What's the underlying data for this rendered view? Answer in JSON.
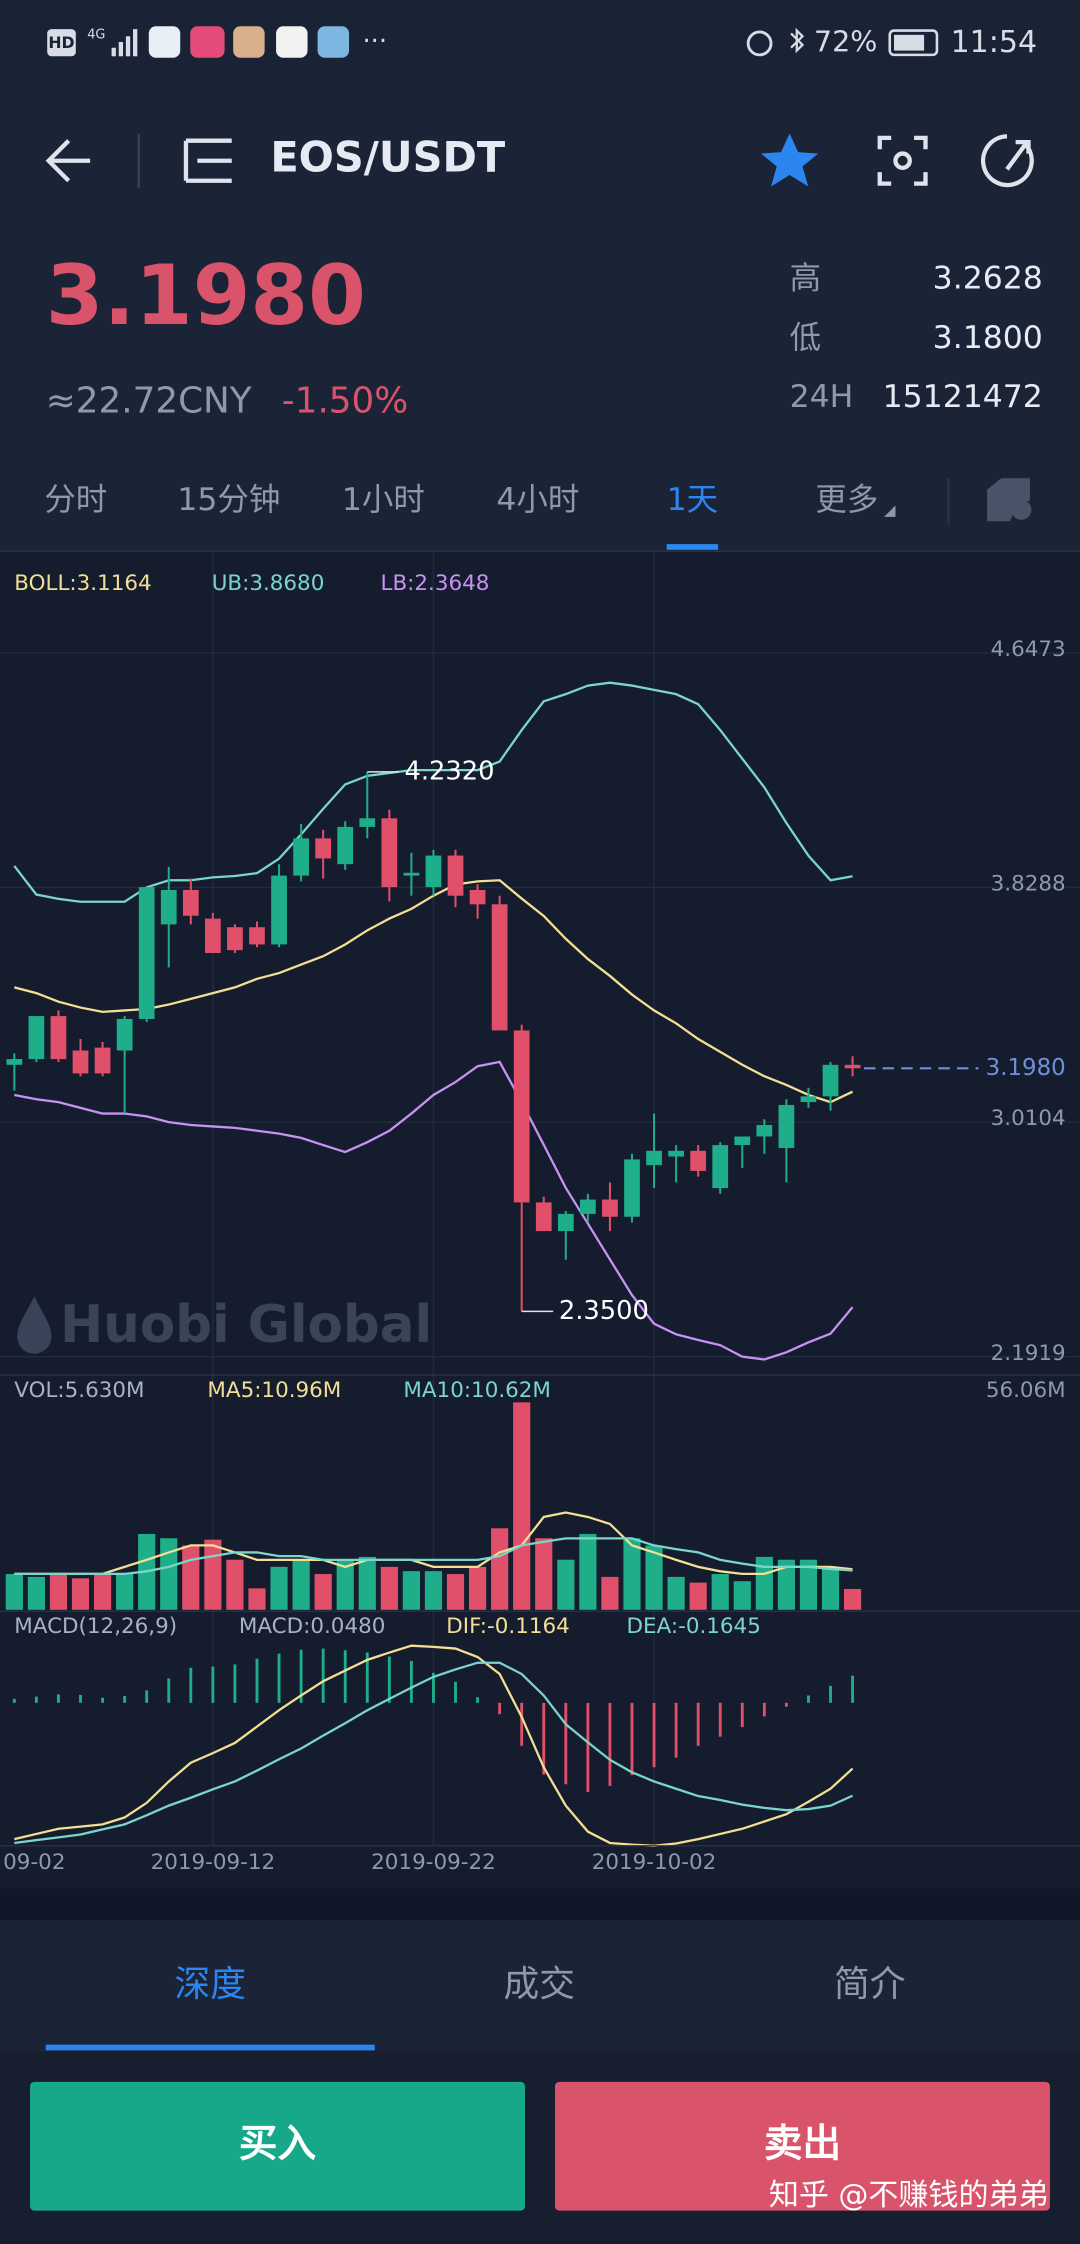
{
  "status_bar": {
    "hd": "HD",
    "network": "4G",
    "more": "···",
    "battery": "72%",
    "time": "11:54"
  },
  "header": {
    "title": "EOS/USDT"
  },
  "ticker": {
    "price": "3.1980",
    "cny": "≈22.72CNY",
    "change": "-1.50%",
    "stats": [
      {
        "label": "高",
        "value": "3.2628"
      },
      {
        "label": "低",
        "value": "3.1800"
      },
      {
        "label": "24H",
        "value": "15121472"
      }
    ]
  },
  "period_tabs": {
    "items": [
      "分时",
      "15分钟",
      "1小时",
      "4小时",
      "1天",
      "更多"
    ],
    "active": 4
  },
  "watermark": "Huobi Global",
  "chart_data": [
    {
      "type": "candlestick",
      "xlim": [
        -0.65,
        48.31
      ],
      "ylim": [
        2.1323,
        5.0016
      ],
      "yticks": [
        4.6473,
        3.8288,
        3.0104,
        2.1919
      ],
      "grid": true,
      "up_color": "#1fae8a",
      "down_color": "#e0506a",
      "open": [
        3.21,
        3.23,
        3.38,
        3.26,
        3.27,
        3.26,
        3.37,
        3.7,
        3.82,
        3.72,
        3.69,
        3.69,
        3.63,
        3.87,
        4.0,
        3.91,
        4.04,
        4.07,
        3.87,
        3.83,
        3.94,
        3.82,
        3.77,
        3.33,
        2.73,
        2.63,
        2.69,
        2.74,
        2.68,
        2.86,
        2.89,
        2.91,
        2.78,
        2.93,
        2.96,
        2.92,
        3.08,
        3.1,
        3.21
      ],
      "high": [
        3.25,
        3.38,
        3.4,
        3.3,
        3.29,
        3.38,
        3.83,
        3.9,
        3.86,
        3.74,
        3.7,
        3.71,
        3.91,
        4.05,
        4.03,
        4.06,
        4.232,
        4.1,
        3.95,
        3.96,
        3.96,
        3.84,
        3.8,
        3.35,
        2.75,
        2.7,
        2.76,
        2.8,
        2.9,
        3.04,
        2.93,
        2.93,
        2.94,
        2.96,
        3.02,
        3.09,
        3.13,
        3.22,
        3.24
      ],
      "low": [
        3.12,
        3.22,
        3.22,
        3.17,
        3.17,
        3.04,
        3.36,
        3.55,
        3.7,
        3.6,
        3.6,
        3.62,
        3.62,
        3.85,
        3.86,
        3.89,
        4.0,
        3.78,
        3.8,
        3.8,
        3.76,
        3.72,
        3.33,
        2.35,
        2.63,
        2.53,
        2.66,
        2.63,
        2.66,
        2.78,
        2.8,
        2.82,
        2.76,
        2.85,
        2.9,
        2.8,
        3.06,
        3.05,
        3.17
      ],
      "close": [
        3.23,
        3.38,
        3.23,
        3.18,
        3.18,
        3.37,
        3.83,
        3.82,
        3.73,
        3.6,
        3.61,
        3.63,
        3.87,
        4.0,
        3.93,
        4.04,
        4.07,
        3.83,
        3.88,
        3.94,
        3.8,
        3.77,
        3.33,
        2.73,
        2.63,
        2.69,
        2.74,
        2.68,
        2.88,
        2.91,
        2.91,
        2.84,
        2.93,
        2.96,
        3.0,
        3.07,
        3.1,
        3.21,
        3.198
      ],
      "series": [
        {
          "name": "BOLL:3.1164",
          "color": "#f2df94",
          "values": [
            3.48,
            3.46,
            3.43,
            3.41,
            3.395,
            3.4,
            3.405,
            3.42,
            3.44,
            3.46,
            3.48,
            3.51,
            3.53,
            3.56,
            3.589,
            3.63,
            3.679,
            3.72,
            3.754,
            3.8,
            3.839,
            3.85,
            3.854,
            3.79,
            3.729,
            3.65,
            3.579,
            3.52,
            3.455,
            3.4,
            3.355,
            3.3,
            3.255,
            3.21,
            3.17,
            3.14,
            3.105,
            3.08,
            3.1164
          ]
        },
        {
          "name": "UB:3.8680",
          "color": "#7ad6c9",
          "values": [
            3.904,
            3.804,
            3.789,
            3.779,
            3.779,
            3.779,
            3.829,
            3.854,
            3.854,
            3.864,
            3.869,
            3.879,
            3.929,
            4.014,
            4.103,
            4.188,
            4.218,
            4.228,
            4.238,
            4.238,
            4.238,
            4.238,
            4.268,
            4.378,
            4.478,
            4.503,
            4.533,
            4.543,
            4.533,
            4.518,
            4.503,
            4.468,
            4.378,
            4.278,
            4.178,
            4.054,
            3.939,
            3.854,
            3.868
          ]
        },
        {
          "name": "LB:2.3648",
          "color": "#c792f2",
          "values": [
            3.105,
            3.09,
            3.08,
            3.06,
            3.04,
            3.04,
            3.03,
            3.01,
            3.0,
            2.995,
            2.99,
            2.98,
            2.97,
            2.955,
            2.93,
            2.906,
            2.94,
            2.98,
            3.04,
            3.105,
            3.15,
            3.205,
            3.22,
            3.08,
            2.931,
            2.781,
            2.656,
            2.531,
            2.407,
            2.307,
            2.27,
            2.25,
            2.232,
            2.192,
            2.182,
            2.207,
            2.242,
            2.272,
            2.3648
          ]
        }
      ],
      "annotations": [
        {
          "x": 16,
          "value": 4.232,
          "label": "4.2320"
        },
        {
          "x": 23,
          "value": 2.35,
          "label": "2.3500"
        }
      ],
      "last_price": {
        "value": 3.198,
        "label": "3.1980",
        "color": "#6f8fd6"
      }
    },
    {
      "type": "bar",
      "ylim": [
        0,
        56.06
      ],
      "yticks": [
        {
          "value": 56.06,
          "label": "56.06M"
        }
      ],
      "series": [
        {
          "name": "VOL:5.630M",
          "values": [
            9.66,
            8.89,
            9.66,
            8.5,
            9.66,
            9.66,
            20.49,
            19.33,
            17.39,
            18.94,
            13.53,
            5.8,
            11.6,
            13.53,
            9.66,
            13.53,
            14.3,
            11.6,
            10.44,
            10.44,
            9.66,
            11.6,
            22.03,
            56.06,
            19.33,
            13.53,
            20.49,
            8.89,
            19.33,
            17.39,
            8.89,
            7.34,
            9.66,
            7.73,
            14.3,
            13.53,
            13.53,
            11.6,
            5.63
          ]
        },
        {
          "name": "MA5:10.96M",
          "color": "#f2df94",
          "values": [
            9.7,
            9.7,
            9.7,
            9.7,
            9.7,
            11.6,
            13.5,
            15.5,
            17.4,
            17.4,
            15.5,
            13.5,
            13.5,
            13.5,
            13.5,
            11.6,
            13.5,
            13.5,
            13.5,
            11.6,
            11.6,
            11.6,
            15.5,
            17.4,
            25.1,
            26.3,
            25.1,
            23.2,
            17.4,
            15.5,
            13.5,
            11.6,
            10.4,
            9.7,
            9.7,
            11.6,
            11.6,
            11.6,
            10.96
          ]
        },
        {
          "name": "MA10:10.62M",
          "color": "#7ad6c9",
          "values": [
            9.7,
            9.7,
            9.7,
            9.7,
            9.7,
            9.7,
            10.4,
            11.6,
            13.5,
            14.5,
            15.5,
            15.5,
            14.5,
            14.5,
            13.5,
            13.5,
            13.5,
            13.5,
            13.5,
            13.5,
            13.5,
            13.5,
            14.5,
            17.4,
            18.4,
            19.3,
            19.3,
            19.3,
            19.3,
            17.4,
            16.4,
            15.5,
            13.5,
            12.5,
            11.6,
            11.6,
            11.6,
            11.0,
            10.62
          ]
        }
      ]
    },
    {
      "type": "macd",
      "title": "MACD(12,26,9)",
      "ylim": [
        -0.253,
        0.157
      ],
      "xticks": [
        {
          "value": -1,
          "label": "09-02"
        },
        {
          "value": 9,
          "label": "2019-09-12"
        },
        {
          "value": 19,
          "label": "2019-09-22"
        },
        {
          "value": 29,
          "label": "2019-10-02"
        }
      ],
      "series": [
        {
          "name": "MACD:0.0480",
          "values": [
            0.007,
            0.011,
            0.015,
            0.014,
            0.009,
            0.012,
            0.022,
            0.043,
            0.062,
            0.064,
            0.068,
            0.078,
            0.087,
            0.094,
            0.096,
            0.093,
            0.089,
            0.082,
            0.074,
            0.053,
            0.037,
            0.01,
            -0.02,
            -0.076,
            -0.127,
            -0.144,
            -0.158,
            -0.147,
            -0.128,
            -0.114,
            -0.097,
            -0.076,
            -0.06,
            -0.043,
            -0.024,
            -0.007,
            0.013,
            0.03,
            0.048
          ]
        },
        {
          "name": "DIF:-0.1164",
          "color": "#f2df94",
          "values": [
            -0.241,
            -0.232,
            -0.223,
            -0.219,
            -0.215,
            -0.203,
            -0.177,
            -0.139,
            -0.106,
            -0.089,
            -0.071,
            -0.042,
            -0.013,
            0.013,
            0.038,
            0.057,
            0.076,
            0.089,
            0.101,
            0.099,
            0.096,
            0.081,
            0.051,
            -0.025,
            -0.114,
            -0.182,
            -0.228,
            -0.248,
            -0.251,
            -0.253,
            -0.249,
            -0.241,
            -0.232,
            -0.223,
            -0.21,
            -0.197,
            -0.175,
            -0.152,
            -0.1164
          ]
        },
        {
          "name": "DEA:-0.1645",
          "color": "#7ad6c9",
          "values": [
            -0.248,
            -0.243,
            -0.238,
            -0.233,
            -0.224,
            -0.215,
            -0.199,
            -0.182,
            -0.168,
            -0.153,
            -0.139,
            -0.12,
            -0.1,
            -0.081,
            -0.058,
            -0.036,
            -0.013,
            0.007,
            0.027,
            0.046,
            0.059,
            0.071,
            0.071,
            0.051,
            0.013,
            -0.038,
            -0.07,
            -0.101,
            -0.123,
            -0.139,
            -0.152,
            -0.165,
            -0.172,
            -0.18,
            -0.186,
            -0.19,
            -0.188,
            -0.182,
            -0.1645
          ]
        }
      ]
    }
  ],
  "bottom_tabs": {
    "items": [
      "深度",
      "成交",
      "简介"
    ],
    "active": 0
  },
  "buttons": {
    "buy": "买入",
    "sell": "卖出"
  },
  "footer_watermark": "知乎 @不赚钱的弟弟"
}
